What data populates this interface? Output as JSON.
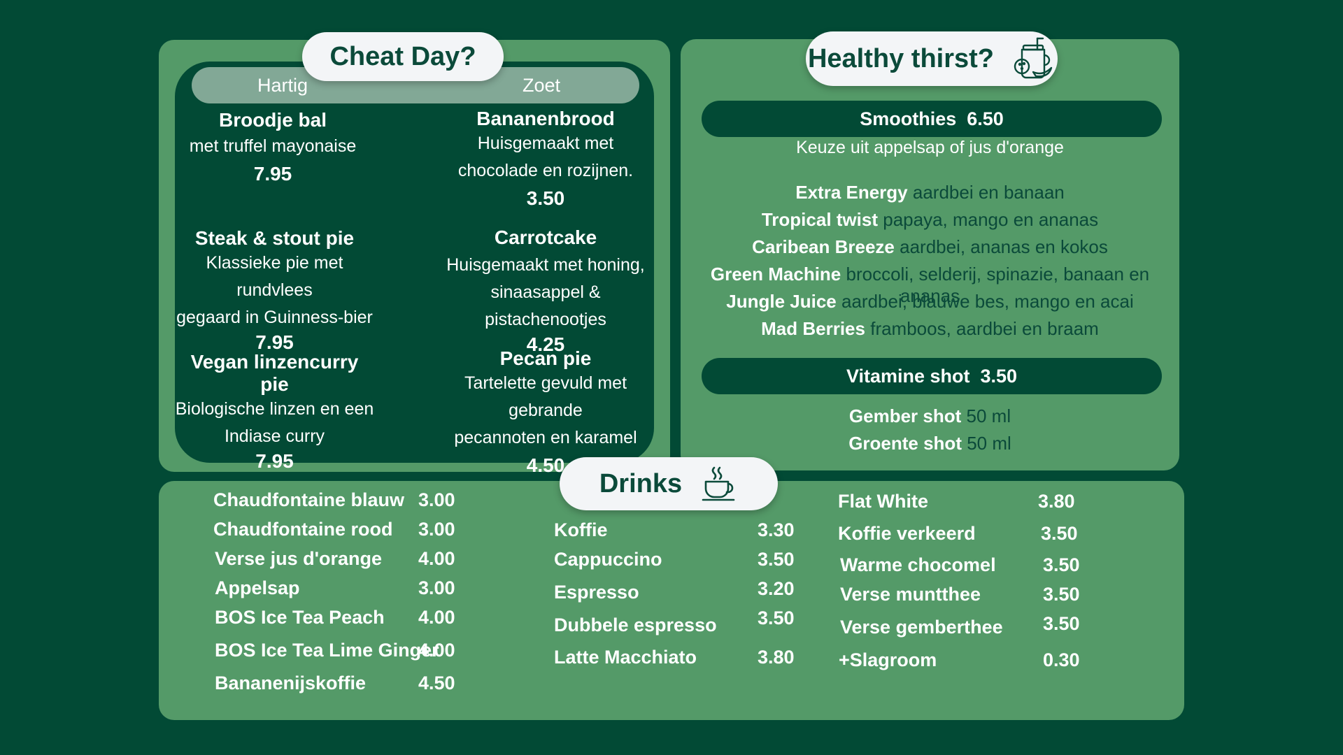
{
  "cheat": {
    "title": "Cheat Day?",
    "tabs": [
      "Hartig",
      "Zoet"
    ],
    "savory": [
      {
        "name": "Broodje bal",
        "desc": [
          "met truffel mayonaise"
        ],
        "price": "7.95"
      },
      {
        "name": "Steak & stout pie",
        "desc": [
          "Klassieke pie met rundvlees",
          "gegaard in Guinness-bier"
        ],
        "price": "7.95"
      },
      {
        "name": "Vegan linzencurry pie",
        "desc": [
          "Biologische linzen en een",
          "Indiase curry"
        ],
        "price": "7.95"
      }
    ],
    "sweet": [
      {
        "name": "Bananenbrood",
        "desc": [
          "Huisgemaakt met",
          "chocolade en rozijnen."
        ],
        "price": "3.50"
      },
      {
        "name": "Carrotcake",
        "desc": [
          "Huisgemaakt met honing,",
          "sinaasappel & pistachenootjes"
        ],
        "price": "4.25"
      },
      {
        "name": "Pecan pie",
        "desc": [
          "Tartelette gevuld met gebrande",
          "pecannoten en karamel"
        ],
        "price": "4.50"
      }
    ]
  },
  "healthy": {
    "title": "Healthy thirst?",
    "icon": "smoothie-jar-icon",
    "smoothies_label": "Smoothies  6.50",
    "smoothies_note": "Keuze uit appelsap of jus d'orange",
    "smoothies": [
      {
        "name": "Extra Energy",
        "ingredients": "aardbei en banaan"
      },
      {
        "name": "Tropical twist",
        "ingredients": "papaya, mango en ananas"
      },
      {
        "name": "Caribean Breeze",
        "ingredients": "aardbei, ananas en kokos"
      },
      {
        "name": "Green Machine",
        "ingredients": "broccoli, selderij, spinazie, banaan en ananas"
      },
      {
        "name": "Jungle Juice",
        "ingredients": "aardbei, blauwe bes, mango en acai"
      },
      {
        "name": "Mad Berries",
        "ingredients": "framboos, aardbei en braam"
      }
    ],
    "shot_label": "Vitamine shot  3.50",
    "shots": [
      {
        "name": "Gember shot",
        "size": "50 ml"
      },
      {
        "name": "Groente shot",
        "size": "50 ml"
      }
    ]
  },
  "drinks": {
    "title": "Drinks",
    "icon": "coffee-cup-icon",
    "col1": [
      {
        "name": "Chaudfontaine blauw",
        "price": "3.00"
      },
      {
        "name": "Chaudfontaine rood",
        "price": "3.00"
      },
      {
        "name": "Verse jus d'orange",
        "price": "4.00"
      },
      {
        "name": "Appelsap",
        "price": "3.00"
      },
      {
        "name": "BOS Ice Tea Peach",
        "price": "4.00"
      },
      {
        "name": "BOS Ice Tea Lime Ginger",
        "price": "4.00"
      },
      {
        "name": "Bananenijskoffie",
        "price": "4.50"
      }
    ],
    "col2": [
      {
        "name": "Koffie",
        "price": "3.30"
      },
      {
        "name": "Cappuccino",
        "price": "3.50"
      },
      {
        "name": "Espresso",
        "price": "3.20"
      },
      {
        "name": "Dubbele espresso",
        "price": "3.50"
      },
      {
        "name": "Latte Macchiato",
        "price": "3.80"
      }
    ],
    "col3": [
      {
        "name": "Flat White",
        "price": "3.80"
      },
      {
        "name": "Koffie verkeerd",
        "price": "3.50"
      },
      {
        "name": "Warme chocomel",
        "price": "3.50"
      },
      {
        "name": "Verse muntthee",
        "price": "3.50"
      },
      {
        "name": "Verse gemberthee",
        "price": "3.50"
      },
      {
        "name": "+Slagroom",
        "price": "0.30"
      }
    ]
  }
}
